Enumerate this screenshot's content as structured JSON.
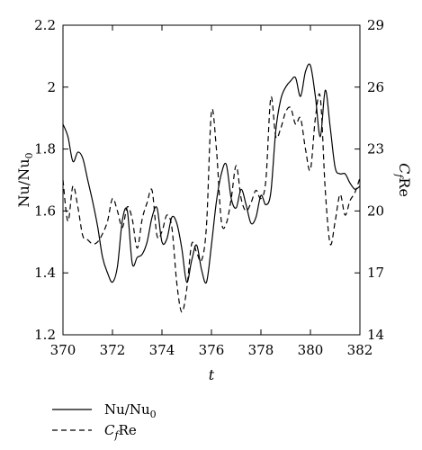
{
  "chart_data": {
    "type": "line",
    "title": "",
    "xlabel": "t",
    "ylabel": "Nu/Nu",
    "ylabel_sub": "0",
    "y2label_main": "C",
    "y2label_sub": "f",
    "y2label_tail": "Re",
    "xlim": [
      370,
      382
    ],
    "ylim": [
      1.2,
      2.2
    ],
    "y2lim": [
      14,
      29
    ],
    "xticks": [
      370,
      372,
      374,
      376,
      378,
      380,
      382
    ],
    "xtick_labels": [
      "370",
      "372",
      "374",
      "376",
      "378",
      "380",
      "382"
    ],
    "yticks": [
      1.2,
      1.4,
      1.6,
      1.8,
      2.0,
      2.2
    ],
    "ytick_labels": [
      "1.2",
      "1.4",
      "1.6",
      "1.8",
      "2",
      "2.2"
    ],
    "y2ticks": [
      14,
      17,
      20,
      23,
      26,
      29
    ],
    "y2tick_labels": [
      "14",
      "17",
      "20",
      "23",
      "26",
      "29"
    ],
    "grid": false,
    "legend_position": "bottom-left",
    "series": [
      {
        "name": "Nu/Nu",
        "name_sub": "0",
        "axis": "left",
        "style": "solid",
        "x": [
          370.0,
          370.2,
          370.4,
          370.6,
          370.8,
          371.0,
          371.2,
          371.4,
          371.6,
          371.8,
          372.0,
          372.2,
          372.4,
          372.6,
          372.8,
          373.0,
          373.2,
          373.4,
          373.6,
          373.8,
          374.0,
          374.2,
          374.4,
          374.6,
          374.8,
          375.0,
          375.2,
          375.4,
          375.6,
          375.8,
          376.0,
          376.2,
          376.4,
          376.6,
          376.8,
          377.0,
          377.2,
          377.4,
          377.6,
          377.8,
          378.0,
          378.2,
          378.4,
          378.6,
          378.8,
          379.0,
          379.2,
          379.4,
          379.6,
          379.8,
          380.0,
          380.2,
          380.4,
          380.6,
          380.8,
          381.0,
          381.2,
          381.4,
          381.6,
          381.8,
          382.0
        ],
        "y": [
          1.88,
          1.84,
          1.76,
          1.79,
          1.77,
          1.7,
          1.63,
          1.55,
          1.45,
          1.4,
          1.37,
          1.42,
          1.57,
          1.6,
          1.43,
          1.45,
          1.46,
          1.5,
          1.58,
          1.61,
          1.5,
          1.51,
          1.58,
          1.56,
          1.48,
          1.37,
          1.44,
          1.49,
          1.41,
          1.37,
          1.49,
          1.63,
          1.72,
          1.75,
          1.64,
          1.61,
          1.67,
          1.62,
          1.56,
          1.58,
          1.65,
          1.62,
          1.66,
          1.86,
          1.96,
          2.0,
          2.02,
          2.03,
          1.97,
          2.05,
          2.07,
          1.97,
          1.84,
          1.99,
          1.87,
          1.74,
          1.72,
          1.72,
          1.69,
          1.67,
          1.68
        ]
      },
      {
        "name": "C",
        "name_sub": "f",
        "name_tail": "Re",
        "axis": "right",
        "style": "dashed",
        "x": [
          370.0,
          370.2,
          370.4,
          370.6,
          370.8,
          371.0,
          371.2,
          371.4,
          371.6,
          371.8,
          372.0,
          372.2,
          372.4,
          372.6,
          372.8,
          373.0,
          373.2,
          373.4,
          373.6,
          373.8,
          374.0,
          374.2,
          374.4,
          374.6,
          374.8,
          375.0,
          375.2,
          375.4,
          375.6,
          375.8,
          376.0,
          376.2,
          376.4,
          376.6,
          376.8,
          377.0,
          377.2,
          377.4,
          377.6,
          377.8,
          378.0,
          378.2,
          378.4,
          378.6,
          378.8,
          379.0,
          379.2,
          379.4,
          379.6,
          379.8,
          380.0,
          380.2,
          380.4,
          380.6,
          380.8,
          381.0,
          381.2,
          381.4,
          381.6,
          381.8,
          382.0
        ],
        "y": [
          21.5,
          19.5,
          21.2,
          20.2,
          18.8,
          18.6,
          18.4,
          18.5,
          18.9,
          19.5,
          20.6,
          20.0,
          19.2,
          20.2,
          19.6,
          18.2,
          19.6,
          20.4,
          21.0,
          18.8,
          19.0,
          19.8,
          19.2,
          16.5,
          15.1,
          16.2,
          18.4,
          18.0,
          17.6,
          19.3,
          24.8,
          23.0,
          19.5,
          19.4,
          20.6,
          22.2,
          20.6,
          20.0,
          20.4,
          21.0,
          20.6,
          21.5,
          25.5,
          23.6,
          24.0,
          24.8,
          25.0,
          24.2,
          24.5,
          23.0,
          22.0,
          24.5,
          25.5,
          21.0,
          18.4,
          19.5,
          20.8,
          19.8,
          20.5,
          20.9,
          21.6
        ]
      }
    ]
  }
}
